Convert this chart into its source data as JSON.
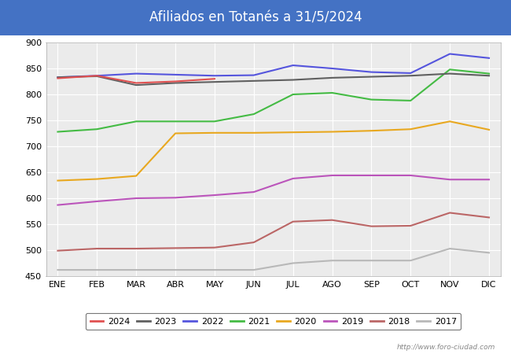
{
  "title": "Afiliados en Totanés a 31/5/2024",
  "title_bg_color": "#4472c4",
  "title_text_color": "white",
  "ylim": [
    450,
    900
  ],
  "yticks": [
    450,
    500,
    550,
    600,
    650,
    700,
    750,
    800,
    850,
    900
  ],
  "months": [
    "ENE",
    "FEB",
    "MAR",
    "ABR",
    "MAY",
    "JUN",
    "JUL",
    "AGO",
    "SEP",
    "OCT",
    "NOV",
    "DIC"
  ],
  "watermark": "http://www.foro-ciudad.com",
  "series": {
    "2024": {
      "color": "#e05050",
      "data": [
        831,
        836,
        822,
        825,
        830,
        null,
        null,
        null,
        null,
        null,
        null,
        null
      ]
    },
    "2023": {
      "color": "#606060",
      "data": [
        833,
        835,
        818,
        822,
        824,
        826,
        828,
        832,
        834,
        836,
        840,
        836
      ]
    },
    "2022": {
      "color": "#5555dd",
      "data": [
        833,
        836,
        840,
        838,
        836,
        837,
        856,
        850,
        843,
        841,
        878,
        870
      ]
    },
    "2021": {
      "color": "#44bb44",
      "data": [
        728,
        733,
        748,
        748,
        748,
        762,
        800,
        803,
        790,
        788,
        848,
        840
      ]
    },
    "2020": {
      "color": "#e8a820",
      "data": [
        634,
        637,
        643,
        725,
        726,
        726,
        727,
        728,
        730,
        733,
        748,
        732
      ]
    },
    "2019": {
      "color": "#bb55bb",
      "data": [
        587,
        594,
        600,
        601,
        606,
        612,
        638,
        644,
        644,
        644,
        636,
        636
      ]
    },
    "2018": {
      "color": "#bb6666",
      "data": [
        499,
        503,
        503,
        504,
        505,
        515,
        555,
        558,
        546,
        547,
        572,
        563
      ]
    },
    "2017": {
      "color": "#b8b8b8",
      "data": [
        462,
        462,
        462,
        462,
        462,
        462,
        475,
        480,
        480,
        480,
        503,
        495
      ]
    }
  }
}
